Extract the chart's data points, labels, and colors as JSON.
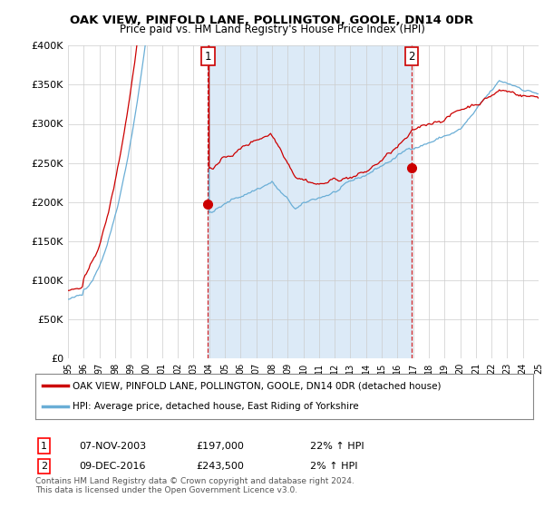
{
  "title": "OAK VIEW, PINFOLD LANE, POLLINGTON, GOOLE, DN14 0DR",
  "subtitle": "Price paid vs. HM Land Registry's House Price Index (HPI)",
  "background_color": "#ffffff",
  "plot_bg_color": "#ffffff",
  "shade_color": "#dceaf7",
  "ylim": [
    0,
    400000
  ],
  "yticks": [
    0,
    50000,
    100000,
    150000,
    200000,
    250000,
    300000,
    350000,
    400000
  ],
  "ytick_labels": [
    "£0",
    "£50K",
    "£100K",
    "£150K",
    "£200K",
    "£250K",
    "£300K",
    "£350K",
    "£400K"
  ],
  "sale1_month_idx": 107,
  "sale1_price": 197000,
  "sale1_label": "1",
  "sale2_month_idx": 263,
  "sale2_price": 243500,
  "sale2_label": "2",
  "legend_line1": "OAK VIEW, PINFOLD LANE, POLLINGTON, GOOLE, DN14 0DR (detached house)",
  "legend_line2": "HPI: Average price, detached house, East Riding of Yorkshire",
  "table_row1": [
    "1",
    "07-NOV-2003",
    "£197,000",
    "22% ↑ HPI"
  ],
  "table_row2": [
    "2",
    "09-DEC-2016",
    "£243,500",
    "2% ↑ HPI"
  ],
  "footer": "Contains HM Land Registry data © Crown copyright and database right 2024.\nThis data is licensed under the Open Government Licence v3.0.",
  "hpi_color": "#6aaed6",
  "price_color": "#cc0000",
  "dashed_color": "#cc0000",
  "n_months": 361,
  "start_year": 1995,
  "x_tick_years": [
    1995,
    1996,
    1997,
    1998,
    1999,
    2000,
    2001,
    2002,
    2003,
    2004,
    2005,
    2006,
    2007,
    2008,
    2009,
    2010,
    2011,
    2012,
    2013,
    2014,
    2015,
    2016,
    2017,
    2018,
    2019,
    2020,
    2021,
    2022,
    2023,
    2024,
    2025
  ],
  "x_tick_labels": [
    "95",
    "96",
    "97",
    "98",
    "99",
    "00",
    "01",
    "02",
    "03",
    "04",
    "05",
    "06",
    "07",
    "08",
    "09",
    "10",
    "11",
    "12",
    "13",
    "14",
    "15",
    "16",
    "17",
    "18",
    "19",
    "20",
    "21",
    "22",
    "23",
    "24",
    "25"
  ]
}
